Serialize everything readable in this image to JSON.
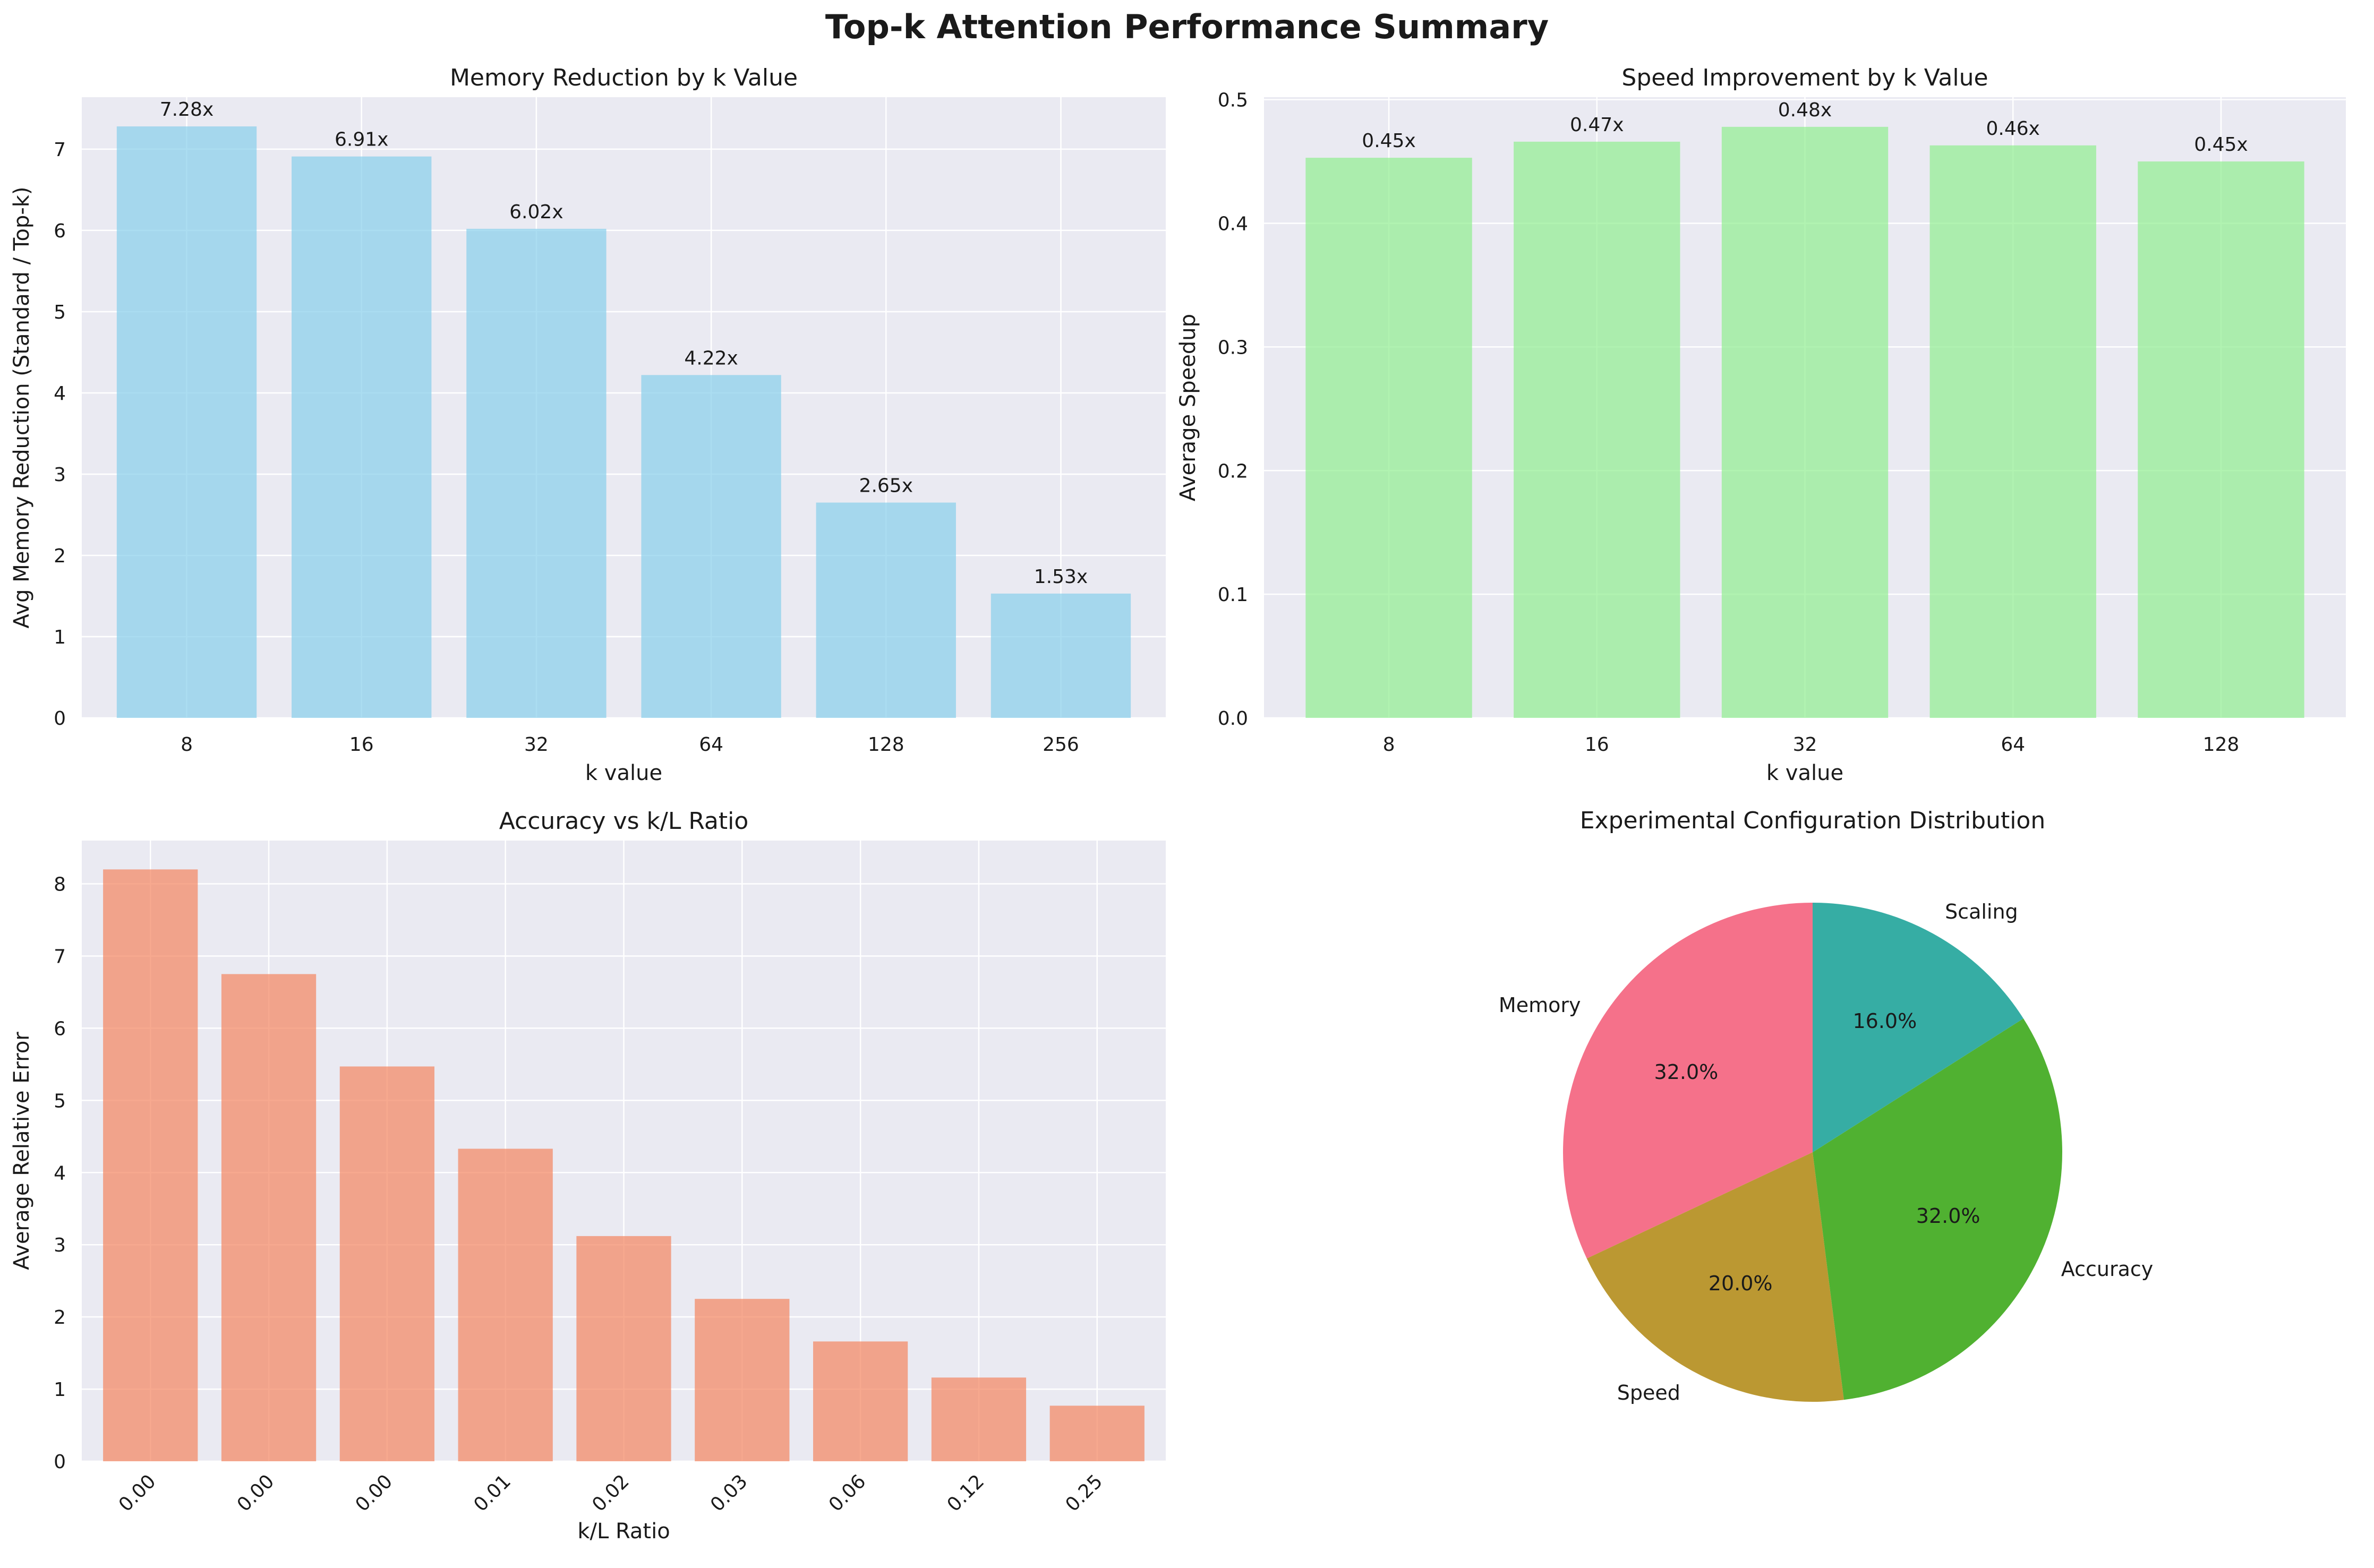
{
  "suptitle": "Top-k Attention Performance Summary",
  "chart_data": [
    {
      "id": "memory",
      "type": "bar",
      "title": "Memory Reduction by k Value",
      "xlabel": "k value",
      "ylabel": "Avg Memory Reduction (Standard / Top-k)",
      "categories": [
        "8",
        "16",
        "32",
        "64",
        "128",
        "256"
      ],
      "values": [
        7.28,
        6.91,
        6.02,
        4.22,
        2.65,
        1.53
      ],
      "data_labels": [
        "7.28x",
        "6.91x",
        "6.02x",
        "4.22x",
        "2.65x",
        "1.53x"
      ],
      "ylim": [
        0,
        7.64
      ],
      "yticks": [
        0,
        1,
        2,
        3,
        4,
        5,
        6,
        7
      ],
      "ytick_labels": [
        "0",
        "1",
        "2",
        "3",
        "4",
        "5",
        "6",
        "7"
      ],
      "color": "#87ceeb",
      "grid": true
    },
    {
      "id": "speed",
      "type": "bar",
      "title": "Speed Improvement by k Value",
      "xlabel": "k value",
      "ylabel": "Average Speedup",
      "categories": [
        "8",
        "16",
        "32",
        "64",
        "128"
      ],
      "values": [
        0.453,
        0.466,
        0.478,
        0.463,
        0.45
      ],
      "data_labels": [
        "0.45x",
        "0.47x",
        "0.48x",
        "0.46x",
        "0.45x"
      ],
      "ylim": [
        0,
        0.502
      ],
      "yticks": [
        0,
        0.1,
        0.2,
        0.3,
        0.4,
        0.5
      ],
      "ytick_labels": [
        "0.0",
        "0.1",
        "0.2",
        "0.3",
        "0.4",
        "0.5"
      ],
      "color": "#90ee90",
      "grid": true
    },
    {
      "id": "accuracy",
      "type": "bar",
      "title": "Accuracy vs k/L Ratio",
      "xlabel": "k/L Ratio",
      "ylabel": "Average Relative Error",
      "categories": [
        "0.00",
        "0.00",
        "0.00",
        "0.01",
        "0.02",
        "0.03",
        "0.06",
        "0.12",
        "0.25"
      ],
      "values": [
        8.2,
        6.75,
        5.47,
        4.33,
        3.12,
        2.25,
        1.66,
        1.16,
        0.77
      ],
      "ylim": [
        0,
        8.6
      ],
      "yticks": [
        0,
        1,
        2,
        3,
        4,
        5,
        6,
        7,
        8
      ],
      "ytick_labels": [
        "0",
        "1",
        "2",
        "3",
        "4",
        "5",
        "6",
        "7",
        "8"
      ],
      "xtick_rotation": 45,
      "color": "#f4845f",
      "grid": true
    },
    {
      "id": "config",
      "type": "pie",
      "title": "Experimental Configuration Distribution",
      "labels": [
        "Memory",
        "Speed",
        "Accuracy",
        "Scaling"
      ],
      "values": [
        32.0,
        20.0,
        32.0,
        16.0
      ],
      "pct_labels": [
        "32.0%",
        "20.0%",
        "32.0%",
        "16.0%"
      ],
      "colors": [
        "#f5718a",
        "#bb9832",
        "#50b131",
        "#36ada4"
      ],
      "start_angle_deg": 90,
      "direction": "counterclockwise"
    }
  ],
  "colors": {
    "axes_bg": "#eaeaf2",
    "grid": "#ffffff",
    "text": "#1a1a1a"
  }
}
